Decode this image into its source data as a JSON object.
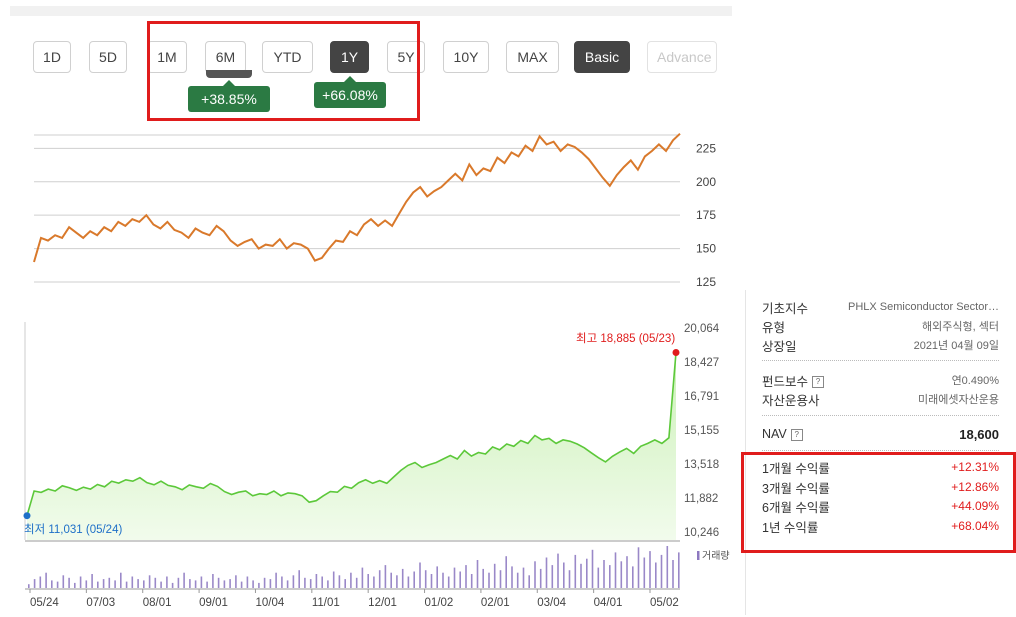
{
  "range_buttons": [
    {
      "label": "1D",
      "state": "normal"
    },
    {
      "label": "5D",
      "state": "normal"
    },
    {
      "label": "1M",
      "state": "normal"
    },
    {
      "label": "6M",
      "state": "normal"
    },
    {
      "label": "YTD",
      "state": "normal"
    },
    {
      "label": "1Y",
      "state": "active"
    },
    {
      "label": "5Y",
      "state": "normal"
    },
    {
      "label": "10Y",
      "state": "normal"
    },
    {
      "label": "MAX",
      "state": "normal"
    },
    {
      "label": "Basic",
      "state": "active"
    },
    {
      "label": "Advance",
      "state": "faded"
    }
  ],
  "badges": {
    "six_month": "+38.85%",
    "one_year": "+66.08%"
  },
  "colors": {
    "orange_line": "#d9792b",
    "green_line": "#5cc83a",
    "green_fill": "#c9f0b4",
    "badge_green": "#2b7a43",
    "highlight_red": "#e01c1c",
    "high_marker": "#e01c1c",
    "low_marker": "#1e6fc8",
    "volume_bar": "#9a88c8"
  },
  "upper_chart": {
    "type": "line",
    "y_ticks": [
      "225",
      "200",
      "175",
      "150",
      "125"
    ],
    "ylim": [
      125,
      235
    ],
    "values": [
      140,
      158,
      156,
      160,
      158,
      166,
      162,
      158,
      163,
      160,
      166,
      163,
      170,
      167,
      172,
      170,
      175,
      168,
      165,
      170,
      164,
      162,
      158,
      165,
      162,
      160,
      167,
      163,
      156,
      152,
      155,
      157,
      150,
      153,
      152,
      157,
      150,
      154,
      153,
      150,
      141,
      143,
      150,
      156,
      155,
      163,
      160,
      168,
      172,
      167,
      171,
      167,
      176,
      185,
      192,
      196,
      189,
      193,
      196,
      201,
      206,
      201,
      213,
      205,
      210,
      208,
      218,
      214,
      222,
      219,
      227,
      223,
      234,
      228,
      230,
      223,
      228,
      226,
      222,
      217,
      210,
      203,
      197,
      205,
      211,
      216,
      209,
      219,
      223,
      228,
      223,
      231,
      236
    ],
    "top_value": 236
  },
  "lower_chart": {
    "type": "area",
    "y_ticks": [
      "20,064",
      "18,427",
      "16,791",
      "15,155",
      "13,518",
      "11,882",
      "10,246"
    ],
    "ylim": [
      10246,
      20064
    ],
    "values": [
      11031,
      12220,
      12150,
      12310,
      12220,
      12470,
      12380,
      12250,
      12400,
      12310,
      12530,
      12420,
      12690,
      12600,
      12760,
      12690,
      12860,
      12620,
      12520,
      12690,
      12490,
      12420,
      12280,
      12510,
      12420,
      12350,
      12580,
      12440,
      12190,
      12050,
      12160,
      12220,
      11990,
      12090,
      12050,
      12220,
      11990,
      12130,
      12090,
      11990,
      11680,
      11750,
      11990,
      12190,
      12160,
      12440,
      12350,
      12620,
      12760,
      12590,
      12720,
      12590,
      12900,
      13210,
      13450,
      13590,
      13350,
      13480,
      13590,
      13760,
      13930,
      13760,
      14170,
      13900,
      14070,
      14000,
      14340,
      14200,
      14480,
      14370,
      14650,
      14510,
      14890,
      14680,
      14750,
      14510,
      14680,
      14610,
      14480,
      14300,
      14060,
      13820,
      13620,
      13890,
      14090,
      14270,
      14030,
      14370,
      14510,
      14680,
      14510,
      14780,
      18885
    ],
    "high_label": "최고 18,885 (05/23)",
    "low_label": "최저 11,031 (05/24)",
    "x_ticks": [
      "05/24",
      "07/03",
      "08/01",
      "09/01",
      "10/04",
      "11/01",
      "12/01",
      "01/02",
      "02/01",
      "03/04",
      "04/01",
      "05/02"
    ]
  },
  "volume": {
    "legend": "거래량",
    "values": [
      3,
      7,
      9,
      12,
      6,
      5,
      10,
      8,
      4,
      9,
      6,
      11,
      5,
      7,
      8,
      6,
      12,
      5,
      9,
      7,
      6,
      10,
      8,
      5,
      9,
      4,
      8,
      12,
      7,
      6,
      9,
      5,
      11,
      8,
      6,
      7,
      10,
      5,
      9,
      6,
      4,
      8,
      7,
      12,
      9,
      6,
      10,
      14,
      8,
      7,
      11,
      9,
      6,
      13,
      10,
      7,
      12,
      8,
      16,
      11,
      9,
      14,
      18,
      12,
      10,
      15,
      9,
      13,
      20,
      14,
      11,
      17,
      12,
      9,
      16,
      13,
      18,
      11,
      22,
      15,
      12,
      19,
      14,
      25,
      17,
      12,
      16,
      10,
      21,
      15,
      24,
      18,
      27,
      20,
      14,
      26,
      19,
      23,
      30,
      16,
      22,
      18,
      28,
      21,
      25,
      17,
      32,
      24,
      29,
      20,
      26,
      33,
      22,
      28
    ]
  },
  "info": {
    "index_label": "기초지수",
    "index_value": "PHLX Semiconductor Sector…",
    "type_label": "유형",
    "type_value": "해외주식형, 섹터",
    "listing_label": "상장일",
    "listing_value": "2021년 04월 09일",
    "fee_label": "펀드보수",
    "fee_help": "?",
    "fee_value": "연0.490%",
    "manager_label": "자산운용사",
    "manager_value": "미래에셋자산운용",
    "nav_label": "NAV",
    "nav_help": "?",
    "nav_value": "18,600",
    "returns": [
      {
        "label": "1개월 수익률",
        "value": "+12.31%"
      },
      {
        "label": "3개월 수익률",
        "value": "+12.86%"
      },
      {
        "label": "6개월 수익률",
        "value": "+44.09%"
      },
      {
        "label": "1년 수익률",
        "value": "+68.04%"
      }
    ]
  }
}
